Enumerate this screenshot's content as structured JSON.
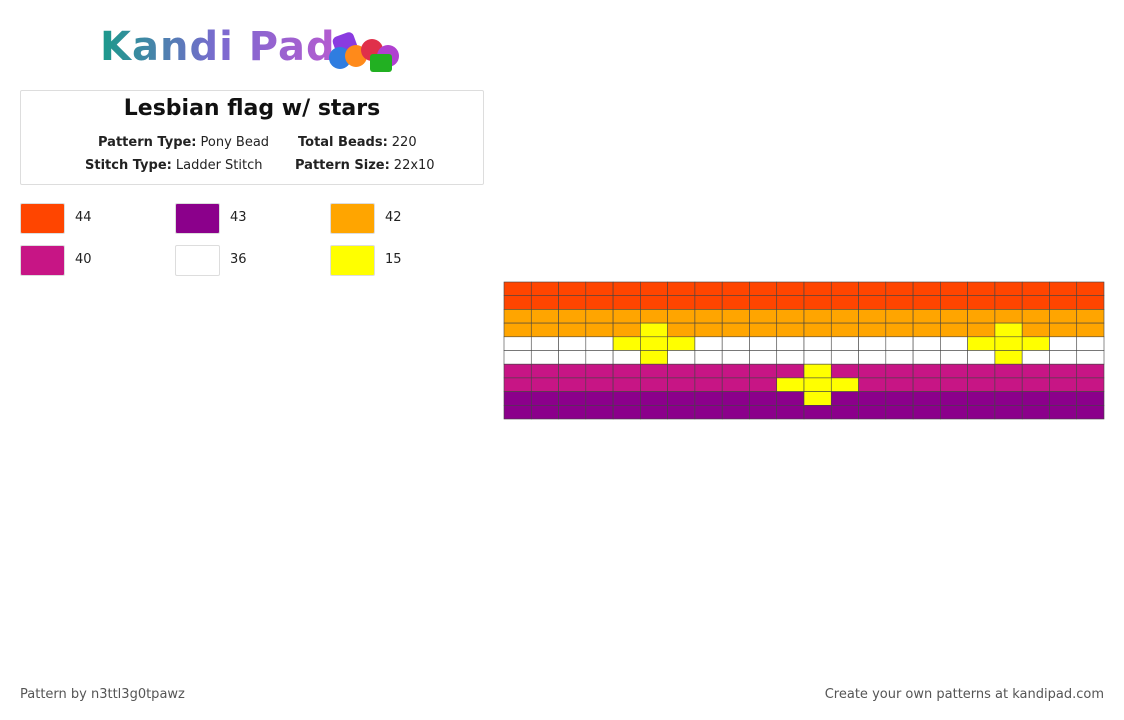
{
  "logo": {
    "text": "Kandi Pad"
  },
  "header": {
    "title": "Lesbian flag w/ stars",
    "fields": [
      {
        "label": "Pattern Type:",
        "value": "Pony Bead"
      },
      {
        "label": "Total Beads:",
        "value": "220"
      },
      {
        "label": "Stitch Type:",
        "value": "Ladder Stitch"
      },
      {
        "label": "Pattern Size:",
        "value": "22x10"
      }
    ]
  },
  "palette": [
    {
      "color": "#ff4500",
      "count": 44
    },
    {
      "color": "#8b008b",
      "count": 43
    },
    {
      "color": "#ffa500",
      "count": 42
    },
    {
      "color": "#c71585",
      "count": 40
    },
    {
      "color": "#ffffff",
      "count": 36
    },
    {
      "color": "#ffff00",
      "count": 15
    }
  ],
  "grid": [
    [
      0,
      0,
      0,
      0,
      0,
      0,
      0,
      0,
      0,
      0,
      0,
      0,
      0,
      0,
      0,
      0,
      0,
      0,
      0,
      0,
      0,
      0
    ],
    [
      0,
      0,
      0,
      0,
      0,
      0,
      0,
      0,
      0,
      0,
      0,
      0,
      0,
      0,
      0,
      0,
      0,
      0,
      0,
      0,
      0,
      0
    ],
    [
      2,
      2,
      2,
      2,
      2,
      2,
      2,
      2,
      2,
      2,
      2,
      2,
      2,
      2,
      2,
      2,
      2,
      2,
      2,
      2,
      2,
      2
    ],
    [
      2,
      2,
      2,
      2,
      2,
      5,
      2,
      2,
      2,
      2,
      2,
      2,
      2,
      2,
      2,
      2,
      2,
      2,
      5,
      2,
      2,
      2
    ],
    [
      4,
      4,
      4,
      4,
      5,
      5,
      5,
      4,
      4,
      4,
      4,
      4,
      4,
      4,
      4,
      4,
      4,
      5,
      5,
      5,
      4,
      4
    ],
    [
      4,
      4,
      4,
      4,
      4,
      5,
      4,
      4,
      4,
      4,
      4,
      4,
      4,
      4,
      4,
      4,
      4,
      4,
      5,
      4,
      4,
      4
    ],
    [
      3,
      3,
      3,
      3,
      3,
      3,
      3,
      3,
      3,
      3,
      3,
      5,
      3,
      3,
      3,
      3,
      3,
      3,
      3,
      3,
      3,
      3
    ],
    [
      3,
      3,
      3,
      3,
      3,
      3,
      3,
      3,
      3,
      3,
      5,
      5,
      5,
      3,
      3,
      3,
      3,
      3,
      3,
      3,
      3,
      3
    ],
    [
      1,
      1,
      1,
      1,
      1,
      1,
      1,
      1,
      1,
      1,
      1,
      5,
      1,
      1,
      1,
      1,
      1,
      1,
      1,
      1,
      1,
      1
    ],
    [
      1,
      1,
      1,
      1,
      1,
      1,
      1,
      1,
      1,
      1,
      1,
      1,
      1,
      1,
      1,
      1,
      1,
      1,
      1,
      1,
      1,
      1
    ]
  ],
  "footer": {
    "left": "Pattern by n3ttl3g0tpawz",
    "right": "Create your own patterns at kandipad.com"
  }
}
